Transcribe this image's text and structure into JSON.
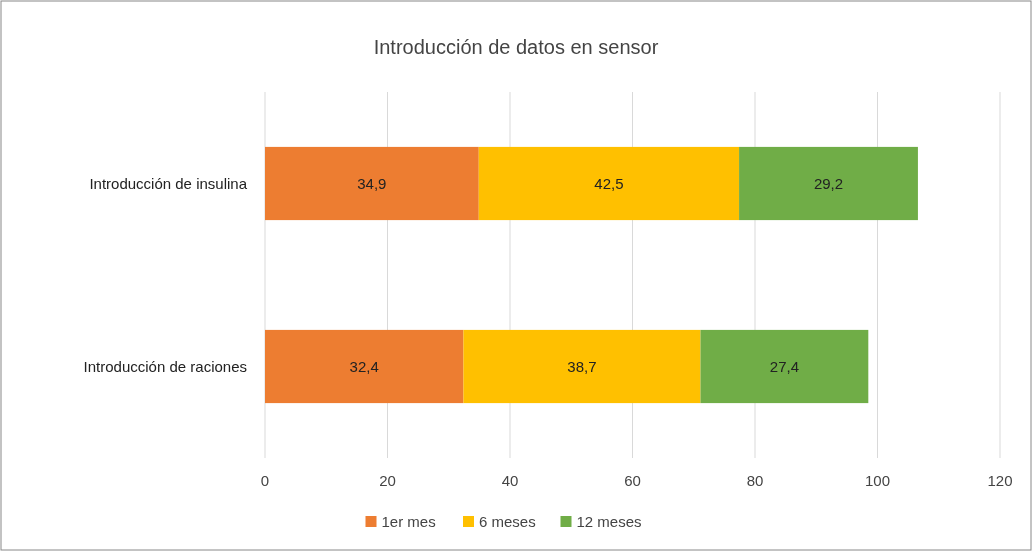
{
  "chart_data": {
    "type": "bar",
    "orientation": "horizontal",
    "stacked": true,
    "title": "Introducción  de datos en sensor",
    "categories": [
      "Introducción de insulina",
      "Introducción de raciones"
    ],
    "series": [
      {
        "name": "1er mes",
        "color": "#ed7d31",
        "values": [
          34.9,
          32.4
        ],
        "value_labels": [
          "34,9",
          "32,4"
        ]
      },
      {
        "name": "6 meses",
        "color": "#ffc000",
        "values": [
          42.5,
          38.7
        ],
        "value_labels": [
          "42,5",
          "38,7"
        ]
      },
      {
        "name": "12 meses",
        "color": "#70ad47",
        "values": [
          29.2,
          27.4
        ],
        "value_labels": [
          "29,2",
          "27,4"
        ]
      }
    ],
    "xlim": [
      0,
      120
    ],
    "xticks": [
      0,
      20,
      40,
      60,
      80,
      100,
      120
    ],
    "grid": "x",
    "legend": "bottom"
  }
}
